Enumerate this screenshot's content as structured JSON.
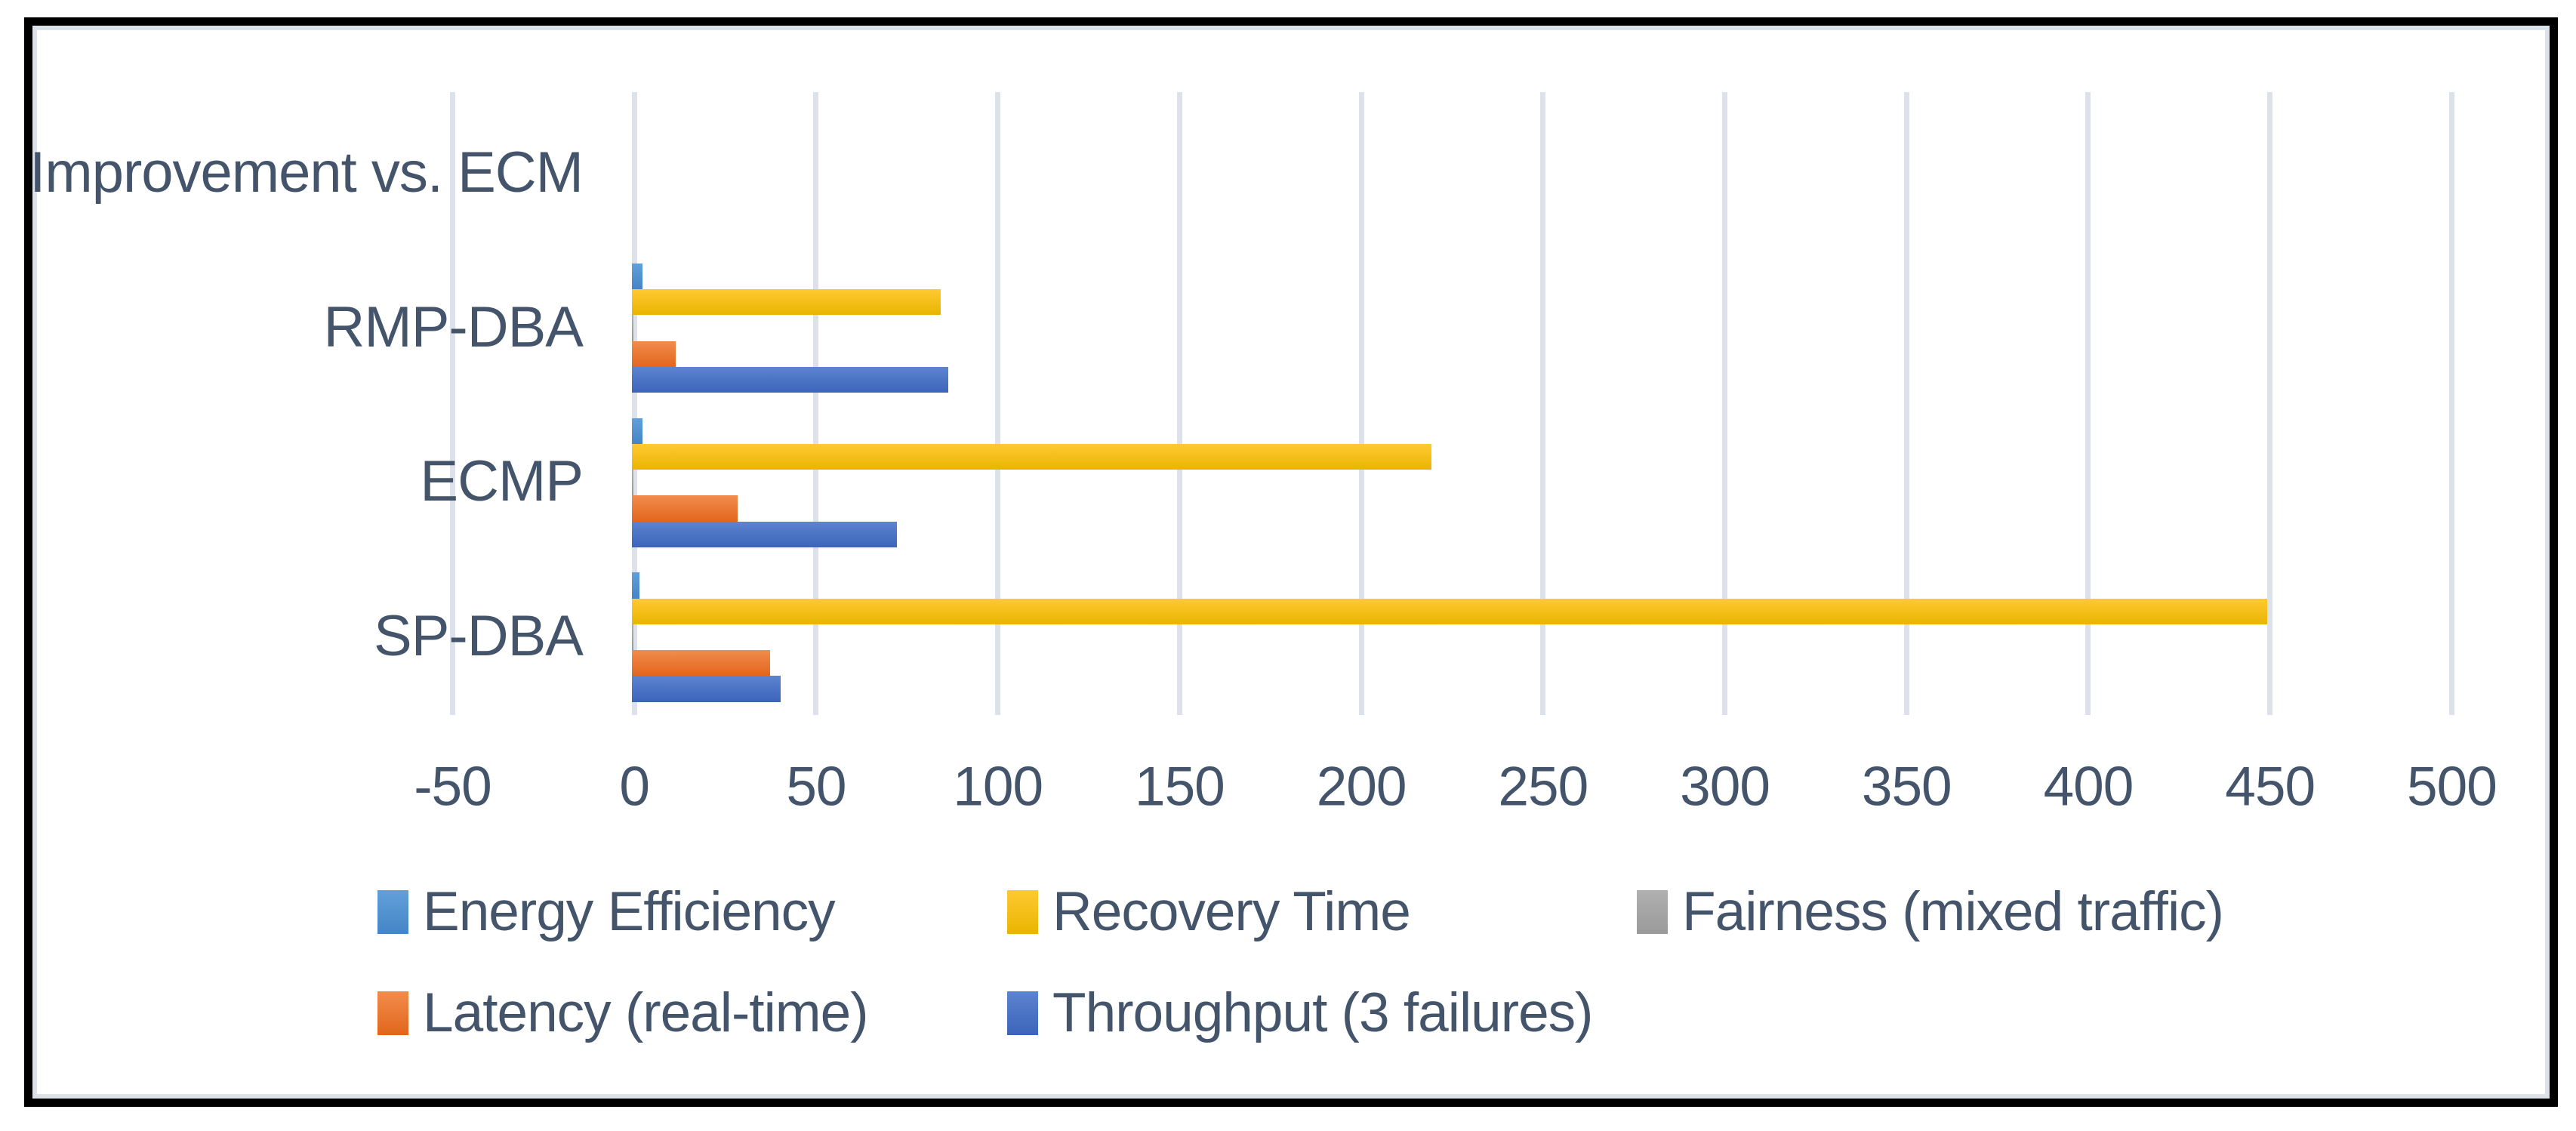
{
  "chart_data": {
    "type": "bar",
    "orientation": "horizontal",
    "title": "",
    "categories": [
      "Improvement vs. ECM",
      "RMP-DBA",
      "ECMP",
      "SP-DBA"
    ],
    "series": [
      {
        "name": "Energy Efficiency",
        "color": "#5B9BD5",
        "gradient_top": "#61a0da",
        "gradient_bottom": "#4585c6",
        "values": [
          null,
          3,
          3,
          2
        ]
      },
      {
        "name": "Recovery Time",
        "color": "#FFC000",
        "gradient_top": "#ffc933",
        "gradient_bottom": "#e9b500",
        "values": [
          null,
          85,
          220,
          450
        ]
      },
      {
        "name": "Fairness (mixed traffic)",
        "color": "#A5A5A5",
        "gradient_top": "#b0b0b0",
        "gradient_bottom": "#9a9a9a",
        "values": [
          null,
          0.5,
          0.5,
          0.5
        ]
      },
      {
        "name": "Latency (real-time)",
        "color": "#ED7D31",
        "gradient_top": "#f18c4d",
        "gradient_bottom": "#e2661c",
        "values": [
          null,
          12,
          29,
          38
        ]
      },
      {
        "name": "Throughput (3 failures)",
        "color": "#4472C4",
        "gradient_top": "#5c84d0",
        "gradient_bottom": "#3c64ba",
        "values": [
          null,
          87,
          73,
          41
        ]
      }
    ],
    "x_axis": {
      "min": -50,
      "max": 500,
      "tick_interval": 50,
      "ticks": [
        -50,
        0,
        50,
        100,
        150,
        200,
        250,
        300,
        350,
        400,
        450,
        500
      ]
    },
    "grid": "vertical-on",
    "legend": {
      "position": "bottom",
      "rows": [
        [
          0,
          1,
          2
        ],
        [
          3,
          4
        ]
      ]
    },
    "text_color": "#44546A",
    "gridline_color": "#DCE1EA"
  }
}
